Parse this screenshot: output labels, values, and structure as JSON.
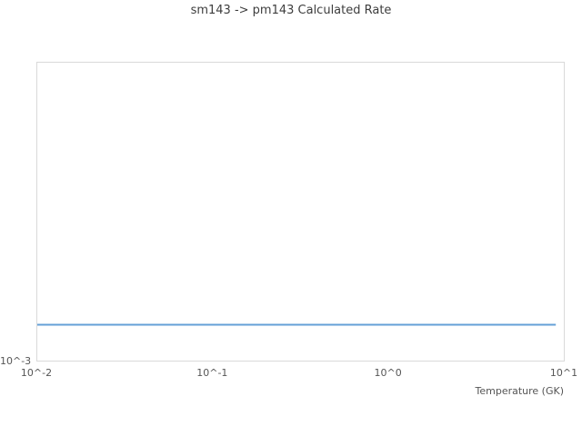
{
  "title": "sm143 -> pm143 Calculated Rate",
  "chart_data": {
    "type": "line",
    "title": "sm143 -> pm143 Calculated Rate",
    "xlabel": "Temperature (GK)",
    "ylabel": "",
    "x_scale": "log",
    "y_scale": "log",
    "xlim": [
      0.01,
      10
    ],
    "ylim": [
      0.001,
      0.01
    ],
    "x_tick_labels": [
      "10^-2",
      "10^-1",
      "10^0",
      "10^1"
    ],
    "y_tick_labels": [
      "10^-3"
    ],
    "grid": false,
    "legend": "none",
    "series": [
      {
        "name": "sm143 -> pm143 calculated rate",
        "color": "#64a0d7",
        "x": [
          0.01,
          9.0
        ],
        "y": [
          0.00132,
          0.00132
        ]
      }
    ],
    "axis_border_color": "#d9d9d9",
    "tick_label_color": "#555555",
    "title_color": "#3d3d3d",
    "background_color": "#ffffff"
  }
}
